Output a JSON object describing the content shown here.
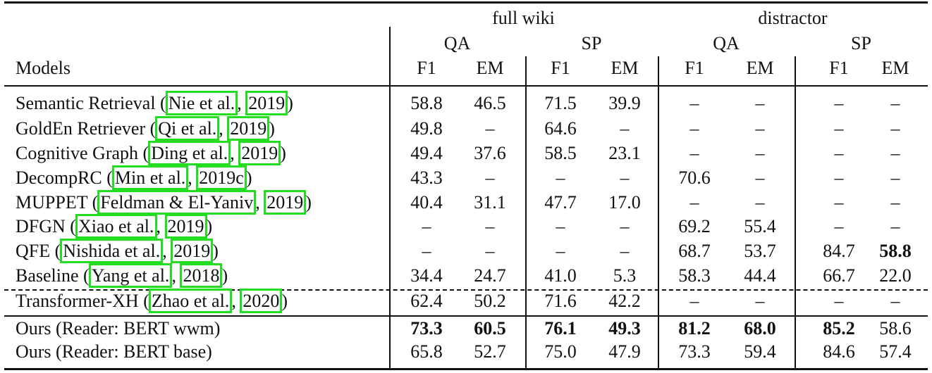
{
  "header": {
    "groups": [
      "full wiki",
      "distractor"
    ],
    "tasks": [
      "QA",
      "SP",
      "QA",
      "SP"
    ],
    "metrics": [
      "F1",
      "EM",
      "F1",
      "EM",
      "F1",
      "EM",
      "F1",
      "EM"
    ],
    "models_label": "Models"
  },
  "rows": [
    {
      "name": "Semantic Retrieval (",
      "cite_author": "Nie et al.",
      "sep": ", ",
      "cite_year": "2019",
      "close": ")",
      "values": [
        "58.8",
        "46.5",
        "71.5",
        "39.9",
        "–",
        "–",
        "–",
        "–"
      ],
      "bold": []
    },
    {
      "name": "GoldEn Retriever (",
      "cite_author": "Qi et al.",
      "sep": ", ",
      "cite_year": "2019",
      "close": ")",
      "values": [
        "49.8",
        "–",
        "64.6",
        "–",
        "–",
        "–",
        "–",
        "–"
      ],
      "bold": []
    },
    {
      "name": "Cognitive Graph (",
      "cite_author": "Ding et al.",
      "sep": ", ",
      "cite_year": "2019",
      "close": ")",
      "values": [
        "49.4",
        "37.6",
        "58.5",
        "23.1",
        "–",
        "–",
        "–",
        "–"
      ],
      "bold": []
    },
    {
      "name": "DecompRC (",
      "cite_author": "Min et al.",
      "sep": ", ",
      "cite_year": "2019c",
      "close": ")",
      "values": [
        "43.3",
        "–",
        "–",
        "–",
        "70.6",
        "–",
        "–",
        "–"
      ],
      "bold": []
    },
    {
      "name": "MUPPET (",
      "cite_author": "Feldman & El-Yaniv",
      "sep": ", ",
      "cite_year": "2019",
      "close": ")",
      "values": [
        "40.4",
        "31.1",
        "47.7",
        "17.0",
        "–",
        "–",
        "–",
        "–"
      ],
      "bold": []
    },
    {
      "name": "DFGN (",
      "cite_author": "Xiao et al.",
      "sep": ", ",
      "cite_year": "2019",
      "close": ")",
      "values": [
        "–",
        "–",
        "–",
        "–",
        "69.2",
        "55.4",
        "–",
        "–"
      ],
      "bold": []
    },
    {
      "name": "QFE (",
      "cite_author": "Nishida et al.",
      "sep": ", ",
      "cite_year": "2019",
      "close": ")",
      "values": [
        "–",
        "–",
        "–",
        "–",
        "68.7",
        "53.7",
        "84.7",
        "58.8"
      ],
      "bold": [
        7
      ]
    },
    {
      "name": "Baseline (",
      "cite_author": "Yang et al.",
      "sep": ", ",
      "cite_year": "2018",
      "close": ")",
      "values": [
        "34.4",
        "24.7",
        "41.0",
        "5.3",
        "58.3",
        "44.4",
        "66.7",
        "22.0"
      ],
      "bold": []
    },
    {
      "name": "Transformer-XH (",
      "cite_author": "Zhao et al.",
      "sep": ", ",
      "cite_year": "2020",
      "close": ")",
      "values": [
        "62.4",
        "50.2",
        "71.6",
        "42.2",
        "–",
        "–",
        "–",
        "–"
      ],
      "bold": []
    },
    {
      "name": "Ours (Reader: BERT wwm)",
      "cite_author": "",
      "sep": "",
      "cite_year": "",
      "close": "",
      "values": [
        "73.3",
        "60.5",
        "76.1",
        "49.3",
        "81.2",
        "68.0",
        "85.2",
        "58.6"
      ],
      "bold": [
        0,
        1,
        2,
        3,
        4,
        5,
        6
      ]
    },
    {
      "name": "Ours (Reader: BERT base)",
      "cite_author": "",
      "sep": "",
      "cite_year": "",
      "close": "",
      "values": [
        "65.8",
        "52.7",
        "75.0",
        "47.9",
        "73.3",
        "59.4",
        "84.6",
        "57.4"
      ],
      "bold": []
    }
  ]
}
